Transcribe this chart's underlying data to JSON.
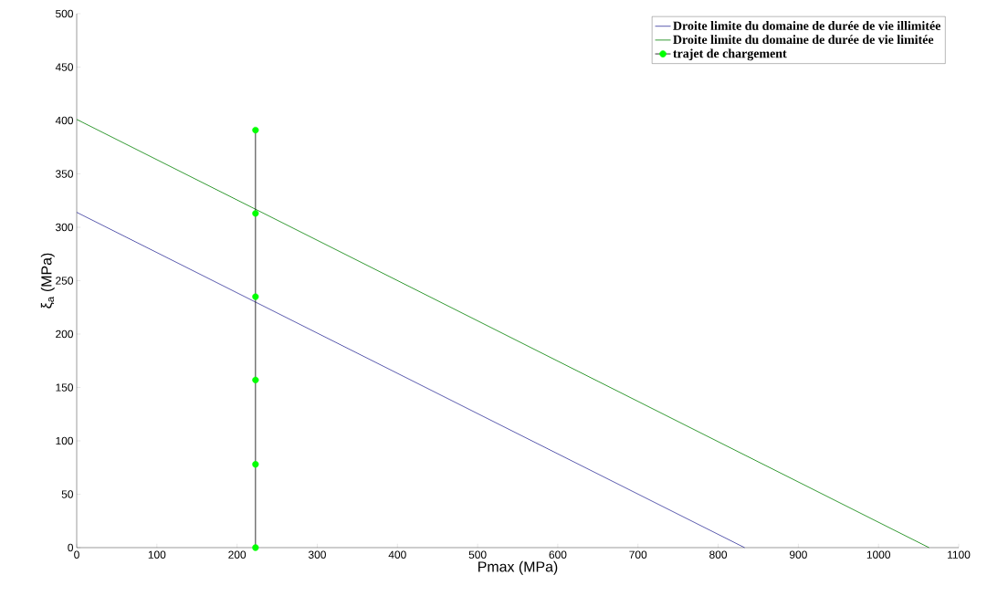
{
  "chart_data": {
    "type": "line",
    "xlabel": "Pmax (MPa)",
    "ylabel": "ξ$_{a}$ (MPa)",
    "xlim": [
      0,
      1100
    ],
    "xticks": [
      0,
      100,
      200,
      300,
      400,
      500,
      600,
      700,
      800,
      900,
      1000,
      1100
    ],
    "ylim": [
      0,
      500
    ],
    "yticks": [
      0,
      50,
      100,
      150,
      200,
      250,
      300,
      350,
      400,
      450,
      500
    ],
    "grid": false,
    "legend": "top right",
    "series": [
      {
        "name": "Droite limite du domaine de durée de vie illimitée",
        "color": "#33339a",
        "x": [
          0,
          833
        ],
        "values": [
          314,
          0
        ],
        "marker": "none"
      },
      {
        "name": "Droite limite du domaine de durée de vie limitée",
        "color": "#008000",
        "x": [
          0,
          1063
        ],
        "values": [
          401,
          0
        ],
        "marker": "none"
      },
      {
        "name": "trajet de chargement",
        "color": "#000000",
        "colors": [
          "#00ff00",
          "#00ff00",
          "#00ff00",
          "#00ff00",
          "#00ff00",
          "#00ff00"
        ],
        "x": [
          223,
          223,
          223,
          223,
          223,
          223
        ],
        "values": [
          0,
          78,
          157,
          235,
          313,
          391
        ],
        "marker": "circle"
      }
    ]
  }
}
